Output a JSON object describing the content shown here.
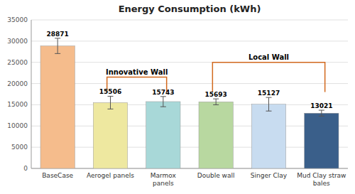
{
  "chart_data": {
    "type": "bar",
    "title": "Energy Consumption (kWh)",
    "categories": [
      "BaseCase",
      "Aerogel panels",
      "Marmox\npanels",
      "Double wall",
      "Singer Clay",
      "Mud Clay straw\nbales"
    ],
    "values": [
      28871,
      15506,
      15743,
      15693,
      15127,
      13021
    ],
    "error_values": [
      1800,
      1500,
      1200,
      700,
      1600,
      700
    ],
    "colors": [
      "#F5BC8C",
      "#EEE8A0",
      "#A8D8D8",
      "#B8D8A0",
      "#C8DCF0",
      "#3A5F8A"
    ],
    "ylim": [
      0,
      35000
    ],
    "yticks": [
      0,
      5000,
      10000,
      15000,
      20000,
      25000,
      30000,
      35000
    ],
    "grid": true,
    "data_labels": true,
    "annotations": [
      {
        "text": "Innovative Wall",
        "x_start": 1,
        "x_end": 2,
        "y_top": 21500,
        "y_bot": 18000,
        "color": "#D2691E"
      },
      {
        "text": "Local Wall",
        "x_start": 3,
        "x_end": 5,
        "y_top": 25000,
        "y_bot": 18000,
        "color": "#D2691E"
      }
    ]
  }
}
